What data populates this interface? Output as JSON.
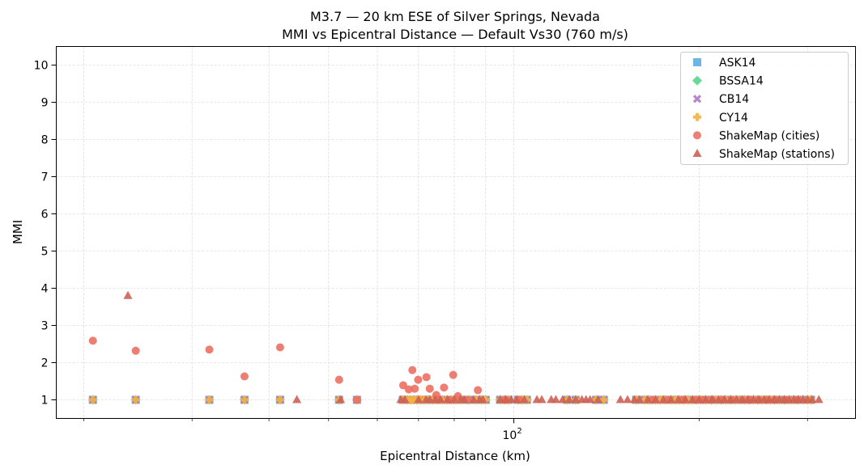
{
  "chart_data": {
    "type": "scatter",
    "title": "M3.7 — 20 km ESE of Silver Springs, Nevada",
    "subtitle": "MMI vs Epicentral Distance — Default Vs30 (760 m/s)",
    "xlabel": "Epicentral Distance (km)",
    "ylabel": "MMI",
    "xscale": "log",
    "xlim": [
      18.05,
      359
    ],
    "ylim": [
      0.5,
      10.5
    ],
    "x_tick_labels": [
      {
        "value": 100,
        "base": "10",
        "exp": "2"
      }
    ],
    "y_ticks": [
      1,
      2,
      3,
      4,
      5,
      6,
      7,
      8,
      9,
      10
    ],
    "grid": true,
    "legend_position": "top-right",
    "series": [
      {
        "name": "ASK14",
        "marker": "square",
        "color": "#5DADE2",
        "x": [
          20.7,
          24.3,
          32.0,
          36.5,
          41.7,
          52.0,
          55.6,
          66.0,
          67.2,
          68.0,
          68.8,
          69.5,
          70.5,
          71.5,
          72.6,
          73.8,
          75.0,
          76.5,
          77.8,
          79.2,
          80.6,
          82.0,
          84.5,
          86.8,
          88.5,
          90.0,
          95.0,
          96.5,
          98.0,
          101.5,
          103.0,
          105.0,
          122.0,
          126.0,
          136.0,
          140.0,
          158,
          163,
          166,
          170,
          173,
          176,
          180,
          183,
          186,
          189,
          192,
          195,
          198,
          201,
          205,
          209,
          213,
          217,
          221,
          225,
          229,
          233,
          237,
          241,
          245,
          249,
          253,
          257,
          261,
          265,
          270,
          275,
          280,
          285,
          290,
          295,
          300,
          304
        ],
        "y": [
          1,
          1,
          1,
          1,
          1,
          1,
          1,
          1,
          1,
          1,
          1,
          1,
          1,
          1,
          1,
          1,
          1,
          1,
          1,
          1,
          1,
          1,
          1,
          1,
          1,
          1,
          1,
          1,
          1,
          1,
          1,
          1,
          1,
          1,
          1,
          1,
          1,
          1,
          1,
          1,
          1,
          1,
          1,
          1,
          1,
          1,
          1,
          1,
          1,
          1,
          1,
          1,
          1,
          1,
          1,
          1,
          1,
          1,
          1,
          1,
          1,
          1,
          1,
          1,
          1,
          1,
          1,
          1,
          1,
          1,
          1,
          1,
          1,
          1
        ]
      },
      {
        "name": "BSSA14",
        "marker": "diamond",
        "color": "#58D68D",
        "x": [
          20.7,
          24.3,
          32.0,
          36.5,
          41.7,
          52.0,
          55.6,
          66.0,
          67.2,
          68.0,
          68.8,
          69.5,
          70.5,
          71.5,
          72.6,
          73.8,
          75.0,
          76.5,
          77.8,
          79.2,
          80.6,
          82.0,
          84.5,
          86.8,
          88.5,
          90.0,
          95.0,
          96.5,
          98.0,
          101.5,
          103.0,
          105.0,
          122.0,
          126.0,
          136.0,
          140.0,
          158,
          163,
          166,
          170,
          173,
          176,
          180,
          183,
          186,
          189,
          192,
          195,
          198,
          201,
          205,
          209,
          213,
          217,
          221,
          225,
          229,
          233,
          237,
          241,
          245,
          249,
          253,
          257,
          261,
          265,
          270,
          275,
          280,
          285,
          290,
          295,
          300,
          304
        ],
        "y": [
          1,
          1,
          1,
          1,
          1,
          1,
          1,
          1,
          1,
          1,
          1,
          1,
          1,
          1,
          1,
          1,
          1,
          1,
          1,
          1,
          1,
          1,
          1,
          1,
          1,
          1,
          1,
          1,
          1,
          1,
          1,
          1,
          1,
          1,
          1,
          1,
          1,
          1,
          1,
          1,
          1,
          1,
          1,
          1,
          1,
          1,
          1,
          1,
          1,
          1,
          1,
          1,
          1,
          1,
          1,
          1,
          1,
          1,
          1,
          1,
          1,
          1,
          1,
          1,
          1,
          1,
          1,
          1,
          1,
          1,
          1,
          1,
          1,
          1
        ]
      },
      {
        "name": "CB14",
        "marker": "x",
        "color": "#AF7AC5",
        "x": [
          20.7,
          24.3,
          32.0,
          36.5,
          41.7,
          52.0,
          55.6,
          66.0,
          67.2,
          68.0,
          68.8,
          69.5,
          70.5,
          71.5,
          72.6,
          73.8,
          75.0,
          76.5,
          77.8,
          79.2,
          80.6,
          82.0,
          84.5,
          86.8,
          88.5,
          90.0,
          95.0,
          96.5,
          98.0,
          101.5,
          103.0,
          105.0,
          122.0,
          126.0,
          136.0,
          140.0,
          158,
          163,
          166,
          170,
          173,
          176,
          180,
          183,
          186,
          189,
          192,
          195,
          198,
          201,
          205,
          209,
          213,
          217,
          221,
          225,
          229,
          233,
          237,
          241,
          245,
          249,
          253,
          257,
          261,
          265,
          270,
          275,
          280,
          285,
          290,
          295,
          300,
          304
        ],
        "y": [
          1,
          1,
          1,
          1,
          1,
          1,
          1,
          1,
          1,
          1,
          1,
          1,
          1,
          1,
          1,
          1,
          1,
          1,
          1,
          1,
          1,
          1,
          1,
          1,
          1,
          1,
          1,
          1,
          1,
          1,
          1,
          1,
          1,
          1,
          1,
          1,
          1,
          1,
          1,
          1,
          1,
          1,
          1,
          1,
          1,
          1,
          1,
          1,
          1,
          1,
          1,
          1,
          1,
          1,
          1,
          1,
          1,
          1,
          1,
          1,
          1,
          1,
          1,
          1,
          1,
          1,
          1,
          1,
          1,
          1,
          1,
          1,
          1,
          1
        ]
      },
      {
        "name": "CY14",
        "marker": "plus",
        "color": "#F5B041",
        "x": [
          20.7,
          24.3,
          32.0,
          36.5,
          41.7,
          52.0,
          55.6,
          66.0,
          67.2,
          68.0,
          68.8,
          69.5,
          70.5,
          71.5,
          72.6,
          73.8,
          75.0,
          76.5,
          77.8,
          79.2,
          80.6,
          82.0,
          84.5,
          86.8,
          88.5,
          90.0,
          95.0,
          96.5,
          98.0,
          101.5,
          103.0,
          105.0,
          122.0,
          126.0,
          136.0,
          140.0,
          158,
          163,
          166,
          170,
          173,
          176,
          180,
          183,
          186,
          189,
          192,
          195,
          198,
          201,
          205,
          209,
          213,
          217,
          221,
          225,
          229,
          233,
          237,
          241,
          245,
          249,
          253,
          257,
          261,
          265,
          270,
          275,
          280,
          285,
          290,
          295,
          300,
          304
        ],
        "y": [
          1,
          1,
          1,
          1,
          1,
          1,
          1,
          1,
          1,
          1,
          1,
          1,
          1,
          1,
          1,
          1,
          1,
          1,
          1,
          1,
          1,
          1,
          1,
          1,
          1,
          1,
          1,
          1,
          1,
          1,
          1,
          1,
          1,
          1,
          1,
          1,
          1,
          1,
          1,
          1,
          1,
          1,
          1,
          1,
          1,
          1,
          1,
          1,
          1,
          1,
          1,
          1,
          1,
          1,
          1,
          1,
          1,
          1,
          1,
          1,
          1,
          1,
          1,
          1,
          1,
          1,
          1,
          1,
          1,
          1,
          1,
          1,
          1,
          1
        ]
      },
      {
        "name": "ShakeMap (cities)",
        "marker": "circle",
        "color": "#EC7063",
        "x": [
          20.7,
          24.3,
          32.0,
          36.5,
          41.7,
          52.0,
          55.6,
          68.4,
          66.1,
          69.9,
          72.1,
          67.5,
          69.0,
          73.0,
          79.7,
          77.0,
          74.8,
          87.4,
          81.1,
          75.5,
          78.5,
          84.0,
          97.0,
          102.0,
          168,
          178,
          188,
          197,
          203,
          210,
          218,
          226,
          235,
          242,
          250,
          258,
          266,
          276,
          288
        ],
        "y": [
          2.59,
          2.32,
          2.35,
          1.63,
          2.41,
          1.54,
          1.0,
          1.8,
          1.39,
          1.54,
          1.61,
          1.28,
          1.3,
          1.3,
          1.67,
          1.33,
          1.13,
          1.26,
          1.1,
          1,
          1,
          1,
          1,
          1,
          1,
          1,
          1,
          1,
          1,
          1,
          1,
          1,
          1,
          1,
          1,
          1,
          1,
          1,
          1
        ]
      },
      {
        "name": "ShakeMap (stations)",
        "marker": "triangle",
        "color": "#CD6155",
        "x": [
          23.6,
          44.4,
          52.3,
          65.5,
          66.5,
          70,
          72,
          73,
          74.5,
          76,
          78,
          80,
          82,
          83,
          86,
          88,
          89,
          95,
          97,
          99,
          101,
          104,
          109,
          111,
          115,
          117,
          120,
          123,
          126,
          129,
          131,
          133,
          137,
          149,
          153,
          157,
          160,
          165,
          170,
          175,
          180,
          185,
          190,
          195,
          200,
          205,
          210,
          215,
          220,
          225,
          230,
          235,
          240,
          245,
          250,
          255,
          260,
          265,
          270,
          275,
          280,
          285,
          290,
          295,
          300,
          305,
          313
        ],
        "y": [
          3.8,
          1,
          1,
          1,
          1,
          1,
          1,
          1,
          1,
          1,
          1,
          1,
          1,
          1,
          1,
          1,
          1,
          1,
          1,
          1,
          1,
          1,
          1,
          1,
          1,
          1,
          1,
          1,
          1,
          1,
          1,
          1,
          1,
          1,
          1,
          1,
          1,
          1,
          1,
          1,
          1,
          1,
          1,
          1,
          1,
          1,
          1,
          1,
          1,
          1,
          1,
          1,
          1,
          1,
          1,
          1,
          1,
          1,
          1,
          1,
          1,
          1,
          1,
          1,
          1,
          1,
          1
        ]
      }
    ]
  }
}
